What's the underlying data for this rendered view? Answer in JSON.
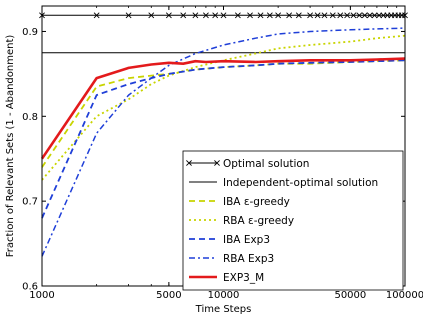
{
  "chart_data": {
    "type": "line",
    "title": "",
    "xlabel": "Time Steps",
    "ylabel": "Fraction of Relevant Sets (1 - Abandonment)",
    "xscale": "log",
    "xlim": [
      1000,
      100000
    ],
    "ylim": [
      0.6,
      0.93
    ],
    "x_ticks": [
      1000,
      5000,
      10000,
      50000,
      100000
    ],
    "x_tick_labels": [
      "1000",
      "5000",
      "10000",
      "50000",
      "100000"
    ],
    "y_ticks": [
      0.6,
      0.7,
      0.8,
      0.9
    ],
    "y_tick_labels": [
      "0.6",
      "0.7",
      "0.8",
      "0.9"
    ],
    "grid": false,
    "legend_position": "bottom-right",
    "series": [
      {
        "name": "Optimal solution",
        "color": "#000000",
        "style": "solid-x-markers",
        "x": [
          1000,
          100000
        ],
        "values": [
          0.919,
          0.919
        ],
        "marker_x": [
          1000,
          2000,
          3000,
          4000,
          5000,
          6000,
          7000,
          8000,
          9000,
          10000,
          12000,
          14000,
          16000,
          18000,
          20000,
          23000,
          26000,
          30000,
          33000,
          36000,
          40000,
          44000,
          48000,
          52000,
          56000,
          60000,
          64000,
          68000,
          72000,
          76000,
          80000,
          84000,
          88000,
          92000,
          96000,
          100000
        ]
      },
      {
        "name": "Independent-optimal solution",
        "color": "#000000",
        "style": "solid-thin",
        "x": [
          1000,
          100000
        ],
        "values": [
          0.875,
          0.875
        ]
      },
      {
        "name": "IBA ε-greedy",
        "color": "#c8d400",
        "style": "dashed",
        "x": [
          1000,
          2000,
          3000,
          4000,
          5000,
          7000,
          10000,
          15000,
          20000,
          30000,
          50000,
          70000,
          100000
        ],
        "values": [
          0.74,
          0.835,
          0.845,
          0.848,
          0.85,
          0.855,
          0.858,
          0.86,
          0.862,
          0.862,
          0.864,
          0.865,
          0.866
        ]
      },
      {
        "name": "RBA ε-greedy",
        "color": "#c8d400",
        "style": "dotted",
        "x": [
          1000,
          2000,
          3000,
          4000,
          5000,
          7000,
          10000,
          15000,
          20000,
          30000,
          50000,
          70000,
          100000
        ],
        "values": [
          0.725,
          0.8,
          0.82,
          0.838,
          0.848,
          0.858,
          0.866,
          0.874,
          0.88,
          0.884,
          0.888,
          0.892,
          0.895
        ]
      },
      {
        "name": "IBA Exp3",
        "color": "#1f3fd8",
        "style": "dashed",
        "x": [
          1000,
          2000,
          3000,
          4000,
          5000,
          7000,
          10000,
          15000,
          20000,
          30000,
          50000,
          70000,
          100000
        ],
        "values": [
          0.68,
          0.825,
          0.838,
          0.845,
          0.85,
          0.855,
          0.858,
          0.86,
          0.862,
          0.863,
          0.864,
          0.865,
          0.866
        ]
      },
      {
        "name": "RBA Exp3",
        "color": "#1f3fd8",
        "style": "dashdot",
        "x": [
          1000,
          2000,
          3000,
          4000,
          5000,
          7000,
          10000,
          15000,
          20000,
          30000,
          50000,
          70000,
          100000
        ],
        "values": [
          0.635,
          0.78,
          0.825,
          0.845,
          0.86,
          0.874,
          0.884,
          0.892,
          0.897,
          0.9,
          0.902,
          0.903,
          0.904
        ]
      },
      {
        "name": "EXP3_M",
        "color": "#e31a1c",
        "style": "solid-thick",
        "x": [
          1000,
          2000,
          3000,
          4000,
          5000,
          6000,
          7000,
          8000,
          10000,
          15000,
          20000,
          30000,
          50000,
          70000,
          100000
        ],
        "values": [
          0.75,
          0.845,
          0.857,
          0.861,
          0.863,
          0.862,
          0.865,
          0.864,
          0.865,
          0.864,
          0.865,
          0.866,
          0.866,
          0.867,
          0.868
        ]
      }
    ]
  }
}
